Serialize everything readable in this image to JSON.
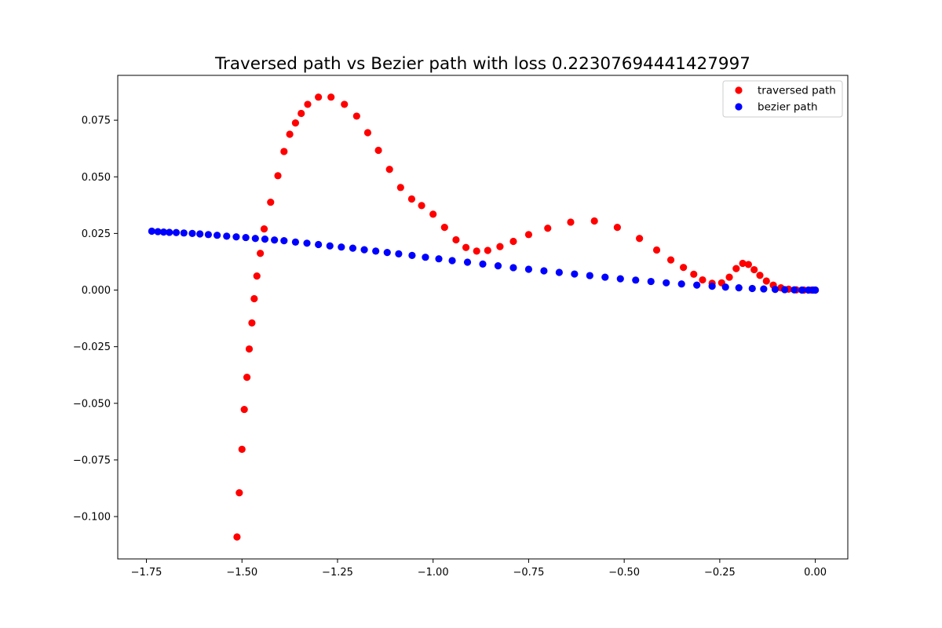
{
  "chart_data": {
    "type": "scatter",
    "title": "Traversed path vs Bezier path with loss 0.22307694441427997",
    "xlabel": "",
    "ylabel": "",
    "xlim": [
      -1.825,
      0.085
    ],
    "ylim": [
      -0.1187,
      0.0948
    ],
    "xticks": [
      -1.75,
      -1.5,
      -1.25,
      -1.0,
      -0.75,
      -0.5,
      -0.25,
      0.0
    ],
    "xtick_labels": [
      "−1.75",
      "−1.50",
      "−1.25",
      "−1.00",
      "−0.75",
      "−0.50",
      "−0.25",
      "0.00"
    ],
    "yticks": [
      -0.1,
      -0.075,
      -0.05,
      -0.025,
      0.0,
      0.025,
      0.05,
      0.075
    ],
    "ytick_labels": [
      "−0.100",
      "−0.075",
      "−0.050",
      "−0.025",
      "0.000",
      "0.025",
      "0.050",
      "0.075"
    ],
    "grid": false,
    "legend_position": "top-right",
    "series": [
      {
        "name": "traversed path",
        "color": "#ff0000",
        "points": [
          [
            -1.513,
            -0.109
          ],
          [
            -1.507,
            -0.0895
          ],
          [
            -1.5,
            -0.0703
          ],
          [
            -1.494,
            -0.0527
          ],
          [
            -1.487,
            -0.0385
          ],
          [
            -1.481,
            -0.026
          ],
          [
            -1.474,
            -0.0145
          ],
          [
            -1.468,
            -0.0038
          ],
          [
            -1.461,
            0.0062
          ],
          [
            -1.452,
            0.0162
          ],
          [
            -1.442,
            0.027
          ],
          [
            -1.425,
            0.0388
          ],
          [
            -1.406,
            0.0505
          ],
          [
            -1.39,
            0.0612
          ],
          [
            -1.375,
            0.0688
          ],
          [
            -1.36,
            0.0738
          ],
          [
            -1.345,
            0.078
          ],
          [
            -1.328,
            0.082
          ],
          [
            -1.3,
            0.0852
          ],
          [
            -1.267,
            0.0852
          ],
          [
            -1.232,
            0.082
          ],
          [
            -1.2,
            0.0768
          ],
          [
            -1.171,
            0.0695
          ],
          [
            -1.143,
            0.0617
          ],
          [
            -1.114,
            0.0533
          ],
          [
            -1.085,
            0.0453
          ],
          [
            -1.056,
            0.0402
          ],
          [
            -1.03,
            0.0373
          ],
          [
            -1.0,
            0.0335
          ],
          [
            -0.97,
            0.0277
          ],
          [
            -0.94,
            0.0222
          ],
          [
            -0.914,
            0.0188
          ],
          [
            -0.886,
            0.0172
          ],
          [
            -0.857,
            0.0175
          ],
          [
            -0.825,
            0.0192
          ],
          [
            -0.79,
            0.0215
          ],
          [
            -0.75,
            0.0245
          ],
          [
            -0.7,
            0.0273
          ],
          [
            -0.64,
            0.03
          ],
          [
            -0.578,
            0.0305
          ],
          [
            -0.518,
            0.0277
          ],
          [
            -0.46,
            0.0228
          ],
          [
            -0.415,
            0.0177
          ],
          [
            -0.378,
            0.0133
          ],
          [
            -0.345,
            0.01
          ],
          [
            -0.318,
            0.007
          ],
          [
            -0.295,
            0.0045
          ],
          [
            -0.27,
            0.003
          ],
          [
            -0.245,
            0.0032
          ],
          [
            -0.225,
            0.0057
          ],
          [
            -0.207,
            0.0095
          ],
          [
            -0.19,
            0.0118
          ],
          [
            -0.175,
            0.0113
          ],
          [
            -0.16,
            0.009
          ],
          [
            -0.145,
            0.0065
          ],
          [
            -0.128,
            0.004
          ],
          [
            -0.11,
            0.0022
          ],
          [
            -0.09,
            0.001
          ],
          [
            -0.07,
            0.0004
          ],
          [
            -0.05,
            0.0001
          ],
          [
            -0.03,
            0.0
          ],
          [
            -0.01,
            0.0
          ],
          [
            0.0,
            0.0
          ]
        ]
      },
      {
        "name": "bezier path",
        "color": "#0000ff",
        "points": [
          [
            -1.736,
            0.026
          ],
          [
            -1.72,
            0.0258
          ],
          [
            -1.705,
            0.0256
          ],
          [
            -1.69,
            0.0255
          ],
          [
            -1.672,
            0.0254
          ],
          [
            -1.652,
            0.0252
          ],
          [
            -1.63,
            0.025
          ],
          [
            -1.61,
            0.0248
          ],
          [
            -1.588,
            0.0245
          ],
          [
            -1.565,
            0.0242
          ],
          [
            -1.54,
            0.0238
          ],
          [
            -1.515,
            0.0235
          ],
          [
            -1.49,
            0.0232
          ],
          [
            -1.465,
            0.0228
          ],
          [
            -1.44,
            0.0225
          ],
          [
            -1.415,
            0.0221
          ],
          [
            -1.39,
            0.0218
          ],
          [
            -1.36,
            0.0212
          ],
          [
            -1.33,
            0.0207
          ],
          [
            -1.3,
            0.0201
          ],
          [
            -1.27,
            0.0195
          ],
          [
            -1.24,
            0.019
          ],
          [
            -1.21,
            0.0185
          ],
          [
            -1.18,
            0.0178
          ],
          [
            -1.15,
            0.0172
          ],
          [
            -1.12,
            0.0166
          ],
          [
            -1.09,
            0.016
          ],
          [
            -1.055,
            0.0153
          ],
          [
            -1.02,
            0.0145
          ],
          [
            -0.985,
            0.0138
          ],
          [
            -0.95,
            0.013
          ],
          [
            -0.91,
            0.0123
          ],
          [
            -0.87,
            0.0115
          ],
          [
            -0.83,
            0.0107
          ],
          [
            -0.79,
            0.0099
          ],
          [
            -0.75,
            0.0092
          ],
          [
            -0.71,
            0.0085
          ],
          [
            -0.67,
            0.0078
          ],
          [
            -0.63,
            0.0071
          ],
          [
            -0.59,
            0.0064
          ],
          [
            -0.55,
            0.0057
          ],
          [
            -0.51,
            0.005
          ],
          [
            -0.47,
            0.0044
          ],
          [
            -0.43,
            0.0038
          ],
          [
            -0.39,
            0.0032
          ],
          [
            -0.35,
            0.0027
          ],
          [
            -0.31,
            0.0022
          ],
          [
            -0.27,
            0.0017
          ],
          [
            -0.235,
            0.0013
          ],
          [
            -0.2,
            0.001
          ],
          [
            -0.165,
            0.0007
          ],
          [
            -0.135,
            0.0005
          ],
          [
            -0.105,
            0.0003
          ],
          [
            -0.08,
            0.0002
          ],
          [
            -0.055,
            0.0001
          ],
          [
            -0.035,
            0.0
          ],
          [
            -0.018,
            0.0
          ],
          [
            -0.006,
            0.0
          ],
          [
            0.0,
            0.0
          ]
        ]
      }
    ]
  }
}
